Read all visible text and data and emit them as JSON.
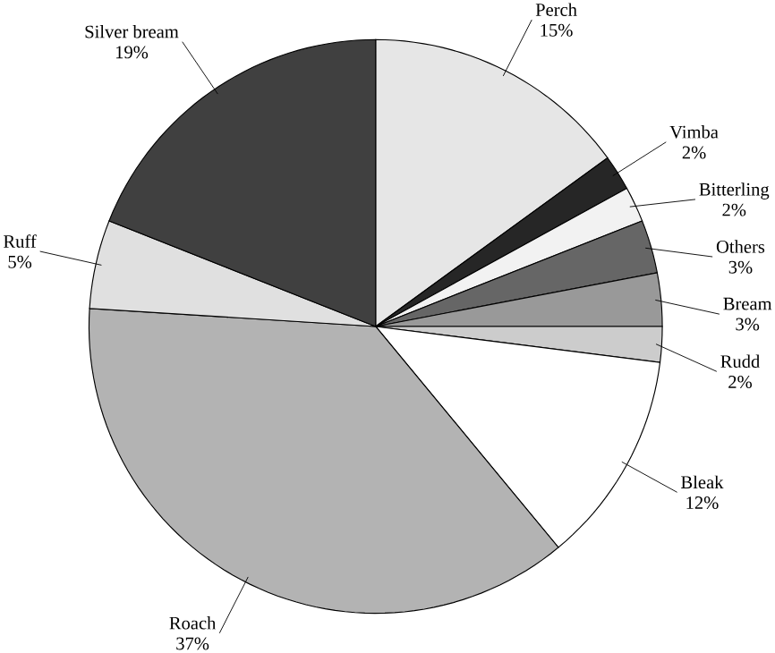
{
  "chart_data": {
    "type": "pie",
    "categories": [
      "Perch",
      "Vimba",
      "Bitterling",
      "Others",
      "Bream",
      "Rudd",
      "Bleak",
      "Roach",
      "Ruff",
      "Silver bream"
    ],
    "values": [
      15,
      2,
      2,
      3,
      3,
      2,
      12,
      37,
      5,
      19
    ],
    "colors": [
      "#e6e6e6",
      "#262626",
      "#f2f2f2",
      "#666666",
      "#999999",
      "#cccccc",
      "#ffffff",
      "#b3b3b3",
      "#e0e0e0",
      "#404040"
    ],
    "value_labels": [
      "15%",
      "2%",
      "2%",
      "3%",
      "3%",
      "2%",
      "12%",
      "37%",
      "5%",
      "19%"
    ]
  }
}
